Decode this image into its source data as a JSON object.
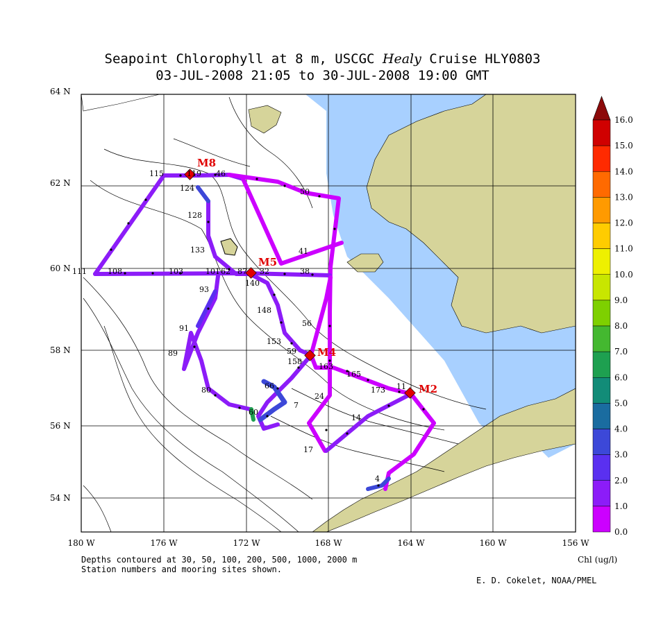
{
  "title": {
    "line1_pre": "Seapoint Chlorophyll at 8 m, USCGC ",
    "line1_ship": "Healy",
    "line1_post": " Cruise HLY0803",
    "line2": "03-JUL-2008 21:05 to 30-JUL-2008 19:00 GMT"
  },
  "axes": {
    "lat_labels": [
      "64 N",
      "62 N",
      "60 N",
      "58 N",
      "56 N",
      "54 N"
    ],
    "lon_labels": [
      "180 W",
      "176 W",
      "172 W",
      "168 W",
      "164 W",
      "160 W",
      "156 W"
    ]
  },
  "colorbar": {
    "label": "Chl (ug/l)",
    "ticks": [
      "16.0",
      "15.0",
      "14.0",
      "13.0",
      "12.0",
      "11.0",
      "10.0",
      "9.0",
      "8.0",
      "7.0",
      "6.0",
      "5.0",
      "4.0",
      "3.0",
      "2.0",
      "1.0",
      "0.0"
    ],
    "colors": [
      "#d00000",
      "#ff2a00",
      "#ff6a00",
      "#ff9a00",
      "#ffcc00",
      "#eef000",
      "#c8e600",
      "#7ed000",
      "#44b830",
      "#1ea050",
      "#128c78",
      "#1a6ca0",
      "#3c48d8",
      "#5a30f0",
      "#8c1cf8",
      "#cc00ff"
    ],
    "top_color": "#8c0a0a"
  },
  "moorings": [
    {
      "name": "M8",
      "color": "#e00000"
    },
    {
      "name": "M5",
      "color": "#e00000"
    },
    {
      "name": "M4",
      "color": "#e00000"
    },
    {
      "name": "M2",
      "color": "#e00000"
    }
  ],
  "stations": [
    "115",
    "119",
    "46",
    "124",
    "50",
    "128",
    "133",
    "41",
    "111",
    "108",
    "103",
    "101",
    "62",
    "87",
    "32",
    "38",
    "140",
    "93",
    "148",
    "56",
    "91",
    "89",
    "153",
    "59",
    "158",
    "163",
    "165",
    "173",
    "11",
    "80",
    "66",
    "24",
    "60",
    "7",
    "14",
    "17",
    "4"
  ],
  "footer": {
    "depths": "Depths contoured at 30, 50, 100, 200, 500, 1000, 2000 m",
    "stations_note": "Station numbers and mooring sites shown.",
    "credit": "E. D. Cokelet, NOAA/PMEL"
  },
  "colors": {
    "land": "#d6d49a",
    "shallow_water": "#a8d0ff",
    "track_low": "#cc00ff",
    "track_mid": "#8c1cf8"
  }
}
